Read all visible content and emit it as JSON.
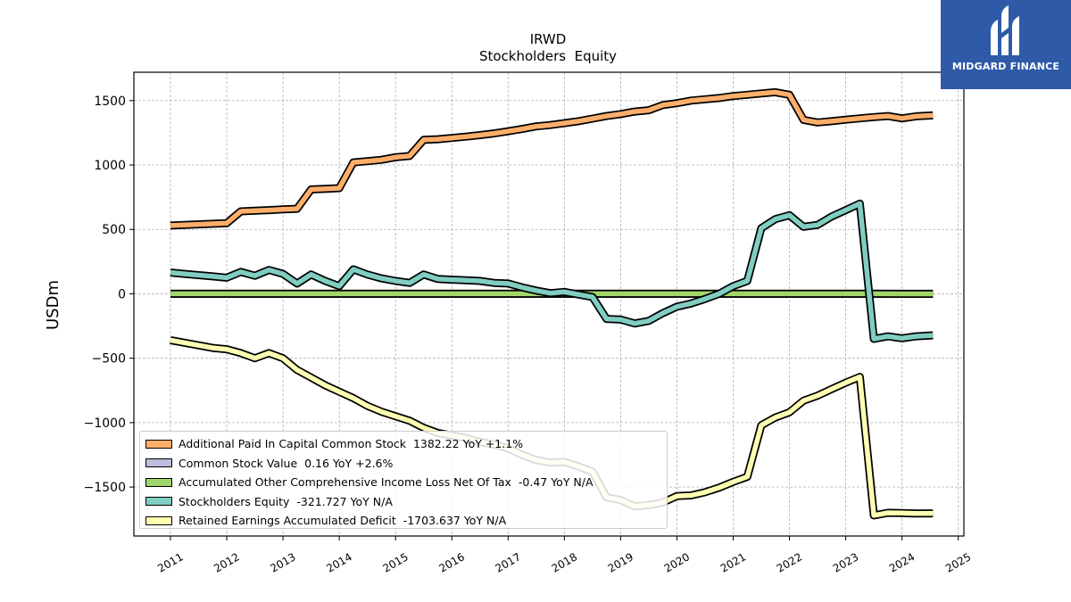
{
  "brand": {
    "name": "MIDGARD FINANCE",
    "color": "#2e5aa8"
  },
  "chart_data": {
    "type": "line",
    "title": "IRWD",
    "subtitle": "Stockholders  Equity",
    "xlabel": "",
    "ylabel": "USDm",
    "xlim": [
      2010.35,
      2025.1
    ],
    "ylim": [
      -1880,
      1720
    ],
    "x_ticks": [
      2011,
      2012,
      2013,
      2014,
      2015,
      2016,
      2017,
      2018,
      2019,
      2020,
      2021,
      2022,
      2023,
      2024,
      2025
    ],
    "y_ticks": [
      -1500,
      -1000,
      -500,
      0,
      500,
      1000,
      1500
    ],
    "y_tick_labels": [
      "−1500",
      "−1000",
      "−500",
      "0",
      "500",
      "1000",
      "1500"
    ],
    "grid": true,
    "legend_position": "lower-left",
    "series": [
      {
        "name": "Additional Paid In Capital Common Stock  1382.22 YoY +1.1%",
        "color": "#fdae6b",
        "points": [
          [
            2011.0,
            530
          ],
          [
            2012.0,
            548
          ],
          [
            2012.25,
            640
          ],
          [
            2012.5,
            645
          ],
          [
            2012.75,
            650
          ],
          [
            2013.0,
            655
          ],
          [
            2013.25,
            660
          ],
          [
            2013.5,
            810
          ],
          [
            2013.75,
            815
          ],
          [
            2014.0,
            820
          ],
          [
            2014.25,
            1020
          ],
          [
            2014.5,
            1030
          ],
          [
            2014.75,
            1040
          ],
          [
            2015.0,
            1060
          ],
          [
            2015.25,
            1070
          ],
          [
            2015.5,
            1195
          ],
          [
            2015.75,
            1200
          ],
          [
            2016.0,
            1210
          ],
          [
            2016.25,
            1220
          ],
          [
            2016.5,
            1232
          ],
          [
            2016.75,
            1245
          ],
          [
            2017.0,
            1262
          ],
          [
            2017.25,
            1280
          ],
          [
            2017.5,
            1300
          ],
          [
            2017.75,
            1310
          ],
          [
            2018.0,
            1325
          ],
          [
            2018.25,
            1340
          ],
          [
            2018.5,
            1360
          ],
          [
            2018.75,
            1380
          ],
          [
            2019.0,
            1395
          ],
          [
            2019.25,
            1415
          ],
          [
            2019.5,
            1425
          ],
          [
            2019.75,
            1465
          ],
          [
            2020.0,
            1480
          ],
          [
            2020.25,
            1500
          ],
          [
            2020.5,
            1510
          ],
          [
            2020.75,
            1520
          ],
          [
            2021.0,
            1535
          ],
          [
            2021.25,
            1545
          ],
          [
            2021.5,
            1555
          ],
          [
            2021.75,
            1565
          ],
          [
            2022.0,
            1545
          ],
          [
            2022.25,
            1350
          ],
          [
            2022.5,
            1330
          ],
          [
            2022.75,
            1340
          ],
          [
            2023.0,
            1352
          ],
          [
            2023.25,
            1362
          ],
          [
            2023.5,
            1372
          ],
          [
            2023.75,
            1380
          ],
          [
            2024.0,
            1362
          ],
          [
            2024.25,
            1378
          ],
          [
            2024.55,
            1385
          ]
        ]
      },
      {
        "name": "Common Stock Value  0.16 YoY +2.6%",
        "color": "#bcbddc",
        "points": [
          [
            2011.0,
            0.1
          ],
          [
            2012.0,
            0.11
          ],
          [
            2013.0,
            0.12
          ],
          [
            2014.0,
            0.13
          ],
          [
            2015.0,
            0.13
          ],
          [
            2016.0,
            0.14
          ],
          [
            2017.0,
            0.14
          ],
          [
            2018.0,
            0.15
          ],
          [
            2019.0,
            0.15
          ],
          [
            2020.0,
            0.15
          ],
          [
            2021.0,
            0.16
          ],
          [
            2022.0,
            0.16
          ],
          [
            2023.0,
            0.16
          ],
          [
            2024.0,
            0.16
          ],
          [
            2024.55,
            0.16
          ]
        ]
      },
      {
        "name": "Accumulated Other Comprehensive Income Loss Net Of Tax  -0.47 YoY N/A",
        "color": "#a1d76a",
        "points": [
          [
            2011.0,
            0
          ],
          [
            2012.0,
            0
          ],
          [
            2013.0,
            0
          ],
          [
            2014.0,
            0
          ],
          [
            2015.0,
            0
          ],
          [
            2016.0,
            0
          ],
          [
            2017.0,
            0
          ],
          [
            2018.0,
            0
          ],
          [
            2019.0,
            0
          ],
          [
            2020.0,
            0
          ],
          [
            2021.0,
            0
          ],
          [
            2022.0,
            0
          ],
          [
            2023.0,
            0
          ],
          [
            2023.5,
            0
          ],
          [
            2024.0,
            -0.5
          ],
          [
            2024.55,
            -0.47
          ]
        ]
      },
      {
        "name": "Stockholders Equity  -321.727 YoY N/A",
        "color": "#80cdc1",
        "points": [
          [
            2011.0,
            165
          ],
          [
            2011.25,
            155
          ],
          [
            2011.5,
            145
          ],
          [
            2011.75,
            135
          ],
          [
            2012.0,
            125
          ],
          [
            2012.25,
            170
          ],
          [
            2012.5,
            140
          ],
          [
            2012.75,
            185
          ],
          [
            2013.0,
            155
          ],
          [
            2013.25,
            80
          ],
          [
            2013.5,
            150
          ],
          [
            2013.75,
            100
          ],
          [
            2014.0,
            60
          ],
          [
            2014.25,
            190
          ],
          [
            2014.5,
            150
          ],
          [
            2014.75,
            120
          ],
          [
            2015.0,
            100
          ],
          [
            2015.25,
            85
          ],
          [
            2015.5,
            150
          ],
          [
            2015.75,
            115
          ],
          [
            2016.0,
            110
          ],
          [
            2016.25,
            105
          ],
          [
            2016.5,
            100
          ],
          [
            2016.75,
            85
          ],
          [
            2017.0,
            80
          ],
          [
            2017.25,
            50
          ],
          [
            2017.5,
            25
          ],
          [
            2017.75,
            5
          ],
          [
            2018.0,
            15
          ],
          [
            2018.25,
            -5
          ],
          [
            2018.5,
            -25
          ],
          [
            2018.75,
            -195
          ],
          [
            2019.0,
            -200
          ],
          [
            2019.25,
            -230
          ],
          [
            2019.5,
            -210
          ],
          [
            2019.75,
            -150
          ],
          [
            2020.0,
            -100
          ],
          [
            2020.25,
            -75
          ],
          [
            2020.5,
            -40
          ],
          [
            2020.75,
            0
          ],
          [
            2021.0,
            60
          ],
          [
            2021.25,
            100
          ],
          [
            2021.5,
            510
          ],
          [
            2021.75,
            580
          ],
          [
            2022.0,
            610
          ],
          [
            2022.25,
            520
          ],
          [
            2022.5,
            535
          ],
          [
            2022.75,
            600
          ],
          [
            2023.0,
            650
          ],
          [
            2023.25,
            700
          ],
          [
            2023.5,
            -350
          ],
          [
            2023.75,
            -330
          ],
          [
            2024.0,
            -345
          ],
          [
            2024.25,
            -330
          ],
          [
            2024.55,
            -322
          ]
        ]
      },
      {
        "name": "Retained Earnings Accumulated Deficit  -1703.637 YoY N/A",
        "color": "#ffffb3",
        "points": [
          [
            2011.0,
            -360
          ],
          [
            2011.25,
            -380
          ],
          [
            2011.5,
            -400
          ],
          [
            2011.75,
            -420
          ],
          [
            2012.0,
            -430
          ],
          [
            2012.25,
            -460
          ],
          [
            2012.5,
            -500
          ],
          [
            2012.75,
            -460
          ],
          [
            2013.0,
            -500
          ],
          [
            2013.25,
            -590
          ],
          [
            2013.5,
            -650
          ],
          [
            2013.75,
            -710
          ],
          [
            2014.0,
            -760
          ],
          [
            2014.25,
            -810
          ],
          [
            2014.5,
            -870
          ],
          [
            2014.75,
            -915
          ],
          [
            2015.0,
            -950
          ],
          [
            2015.25,
            -985
          ],
          [
            2015.5,
            -1040
          ],
          [
            2015.75,
            -1080
          ],
          [
            2016.0,
            -1100
          ],
          [
            2016.25,
            -1120
          ],
          [
            2016.5,
            -1150
          ],
          [
            2016.75,
            -1170
          ],
          [
            2017.0,
            -1200
          ],
          [
            2017.25,
            -1250
          ],
          [
            2017.5,
            -1290
          ],
          [
            2017.75,
            -1310
          ],
          [
            2018.0,
            -1305
          ],
          [
            2018.25,
            -1340
          ],
          [
            2018.5,
            -1380
          ],
          [
            2018.75,
            -1580
          ],
          [
            2019.0,
            -1600
          ],
          [
            2019.25,
            -1650
          ],
          [
            2019.5,
            -1640
          ],
          [
            2019.75,
            -1620
          ],
          [
            2020.0,
            -1570
          ],
          [
            2020.25,
            -1565
          ],
          [
            2020.5,
            -1540
          ],
          [
            2020.75,
            -1505
          ],
          [
            2021.0,
            -1460
          ],
          [
            2021.25,
            -1420
          ],
          [
            2021.5,
            -1020
          ],
          [
            2021.75,
            -960
          ],
          [
            2022.0,
            -920
          ],
          [
            2022.25,
            -830
          ],
          [
            2022.5,
            -790
          ],
          [
            2022.75,
            -740
          ],
          [
            2023.0,
            -690
          ],
          [
            2023.25,
            -645
          ],
          [
            2023.5,
            -1720
          ],
          [
            2023.75,
            -1700
          ],
          [
            2024.0,
            -1702
          ],
          [
            2024.25,
            -1705
          ],
          [
            2024.55,
            -1704
          ]
        ]
      }
    ]
  }
}
